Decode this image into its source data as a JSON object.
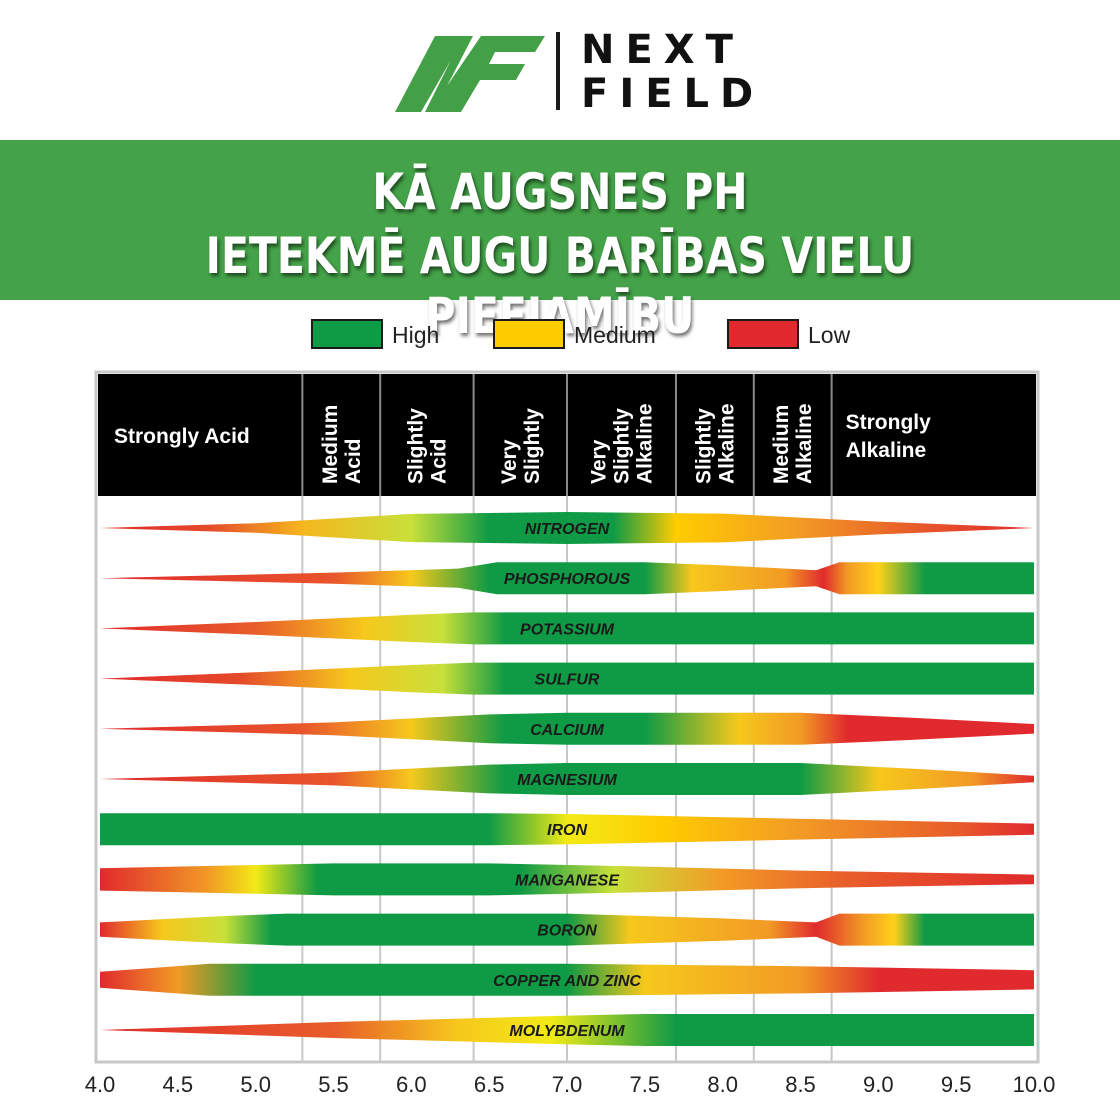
{
  "brand": {
    "line1": "NEXT",
    "line2": "FIELD",
    "colors": {
      "green": "#43a047",
      "dark": "#111111"
    }
  },
  "banner": {
    "line1": "KĀ AUGSNES PH",
    "line2": "IETEKMĒ AUGU BARĪBAS VIELU PIEEJAMĪBU",
    "color": "#44a348"
  },
  "chart_data": {
    "type": "band",
    "x_min": 4.0,
    "x_max": 10.0,
    "ticks": [
      "4.0",
      "4.5",
      "5.0",
      "5.5",
      "6.0",
      "6.5",
      "7.0",
      "7.5",
      "8.0",
      "8.5",
      "9.0",
      "9.5",
      "10.0"
    ],
    "legend": [
      {
        "label": "High",
        "color": "#0f9a45"
      },
      {
        "label": "Medium",
        "color": "#ffcc00"
      },
      {
        "label": "Low",
        "color": "#e02a2d"
      }
    ],
    "zones": [
      {
        "from": 4.0,
        "to": 5.3,
        "label": [
          "Strongly Acid"
        ],
        "vertical": false
      },
      {
        "from": 5.3,
        "to": 5.8,
        "label": [
          "Medium",
          "Acid"
        ],
        "vertical": true
      },
      {
        "from": 5.8,
        "to": 6.4,
        "label": [
          "Slightly",
          "Acid"
        ],
        "vertical": true
      },
      {
        "from": 6.4,
        "to": 7.0,
        "label": [
          "Very",
          "Slightly"
        ],
        "vertical": true
      },
      {
        "from": 7.0,
        "to": 7.7,
        "label": [
          "Very",
          "Slightly",
          "Alkaline"
        ],
        "vertical": true
      },
      {
        "from": 7.7,
        "to": 8.2,
        "label": [
          "Slightly",
          "Alkaline"
        ],
        "vertical": true
      },
      {
        "from": 8.2,
        "to": 8.7,
        "label": [
          "Medium",
          "Alkaline"
        ],
        "vertical": true
      },
      {
        "from": 8.7,
        "to": 10.0,
        "label": [
          "Strongly",
          "Alkaline"
        ],
        "vertical": false
      }
    ],
    "nutrients": [
      {
        "name": "NITROGEN",
        "width": [
          [
            4.0,
            0
          ],
          [
            5.0,
            0.3
          ],
          [
            6.0,
            0.88
          ],
          [
            7.0,
            1
          ],
          [
            8.0,
            0.9
          ],
          [
            9.0,
            0.4
          ],
          [
            10.0,
            0
          ]
        ],
        "color": [
          [
            4.0,
            "#e02a2d"
          ],
          [
            4.7,
            "#e44a2a"
          ],
          [
            5.3,
            "#f5b61e"
          ],
          [
            6.0,
            "#c9e03a"
          ],
          [
            6.5,
            "#0f9a45"
          ],
          [
            7.3,
            "#0f9a45"
          ],
          [
            7.7,
            "#ffcc00"
          ],
          [
            8.5,
            "#f29a25"
          ],
          [
            9.2,
            "#e85d2a"
          ],
          [
            10.0,
            "#e02a2d"
          ]
        ]
      },
      {
        "name": "PHOSPHOROUS",
        "width": [
          [
            4.0,
            0
          ],
          [
            5.5,
            0.35
          ],
          [
            6.3,
            0.6
          ],
          [
            6.55,
            1
          ],
          [
            7.5,
            1
          ],
          [
            8.0,
            0.8
          ],
          [
            8.6,
            0.5
          ],
          [
            8.75,
            1
          ],
          [
            10.0,
            1
          ]
        ],
        "color": [
          [
            4.0,
            "#e02a2d"
          ],
          [
            5.5,
            "#e8552b"
          ],
          [
            6.0,
            "#f6c81c"
          ],
          [
            6.5,
            "#0f9a45"
          ],
          [
            7.5,
            "#0f9a45"
          ],
          [
            7.8,
            "#f6c81c"
          ],
          [
            8.4,
            "#f29a25"
          ],
          [
            8.65,
            "#e02a2d"
          ],
          [
            8.8,
            "#f29a25"
          ],
          [
            9.0,
            "#ffd11a"
          ],
          [
            9.3,
            "#0f9a45"
          ],
          [
            10.0,
            "#0f9a45"
          ]
        ]
      },
      {
        "name": "POTASSIUM",
        "width": [
          [
            4.0,
            0
          ],
          [
            5.0,
            0.4
          ],
          [
            6.0,
            0.85
          ],
          [
            6.4,
            1
          ],
          [
            10.0,
            1
          ]
        ],
        "color": [
          [
            4.0,
            "#e02a2d"
          ],
          [
            5.0,
            "#e85d2a"
          ],
          [
            5.7,
            "#f6c81c"
          ],
          [
            6.2,
            "#c9e03a"
          ],
          [
            6.6,
            "#0f9a45"
          ],
          [
            10.0,
            "#0f9a45"
          ]
        ]
      },
      {
        "name": "SULFUR",
        "width": [
          [
            4.0,
            0
          ],
          [
            5.0,
            0.4
          ],
          [
            6.0,
            0.85
          ],
          [
            6.4,
            1
          ],
          [
            10.0,
            1
          ]
        ],
        "color": [
          [
            4.0,
            "#e02a2d"
          ],
          [
            4.9,
            "#e44a2a"
          ],
          [
            5.6,
            "#f6c81c"
          ],
          [
            6.2,
            "#c9e03a"
          ],
          [
            6.6,
            "#0f9a45"
          ],
          [
            10.0,
            "#0f9a45"
          ]
        ]
      },
      {
        "name": "CALCIUM",
        "width": [
          [
            4.0,
            0
          ],
          [
            5.5,
            0.4
          ],
          [
            6.5,
            0.9
          ],
          [
            7.0,
            1
          ],
          [
            8.5,
            1
          ],
          [
            9.2,
            0.7
          ],
          [
            10.0,
            0.3
          ]
        ],
        "color": [
          [
            4.0,
            "#e02a2d"
          ],
          [
            5.3,
            "#e8552b"
          ],
          [
            6.0,
            "#f6c81c"
          ],
          [
            6.6,
            "#0f9a45"
          ],
          [
            7.5,
            "#0f9a45"
          ],
          [
            8.1,
            "#f6c81c"
          ],
          [
            8.5,
            "#f29a25"
          ],
          [
            8.8,
            "#e02a2d"
          ],
          [
            10.0,
            "#e02a2d"
          ]
        ]
      },
      {
        "name": "MAGNESIUM",
        "width": [
          [
            4.0,
            0
          ],
          [
            5.5,
            0.4
          ],
          [
            6.5,
            0.9
          ],
          [
            7.0,
            1
          ],
          [
            8.5,
            1
          ],
          [
            9.3,
            0.6
          ],
          [
            10.0,
            0.2
          ]
        ],
        "color": [
          [
            4.0,
            "#e02a2d"
          ],
          [
            5.5,
            "#e8552b"
          ],
          [
            6.0,
            "#f6c81c"
          ],
          [
            6.6,
            "#0f9a45"
          ],
          [
            8.0,
            "#0f9a45"
          ],
          [
            8.5,
            "#0f9a45"
          ],
          [
            9.0,
            "#f6c81c"
          ],
          [
            9.6,
            "#f29a25"
          ],
          [
            10.0,
            "#e02a2d"
          ]
        ]
      },
      {
        "name": "IRON",
        "width": [
          [
            4.0,
            1
          ],
          [
            6.5,
            1
          ],
          [
            7.0,
            0.95
          ],
          [
            8.0,
            0.75
          ],
          [
            9.0,
            0.55
          ],
          [
            10.0,
            0.35
          ]
        ],
        "color": [
          [
            4.0,
            "#0f9a45"
          ],
          [
            6.5,
            "#0f9a45"
          ],
          [
            7.0,
            "#f2ea17"
          ],
          [
            7.6,
            "#ffcc00"
          ],
          [
            8.5,
            "#f29a25"
          ],
          [
            9.5,
            "#e85d2a"
          ],
          [
            10.0,
            "#e02a2d"
          ]
        ]
      },
      {
        "name": "MANGANESE",
        "width": [
          [
            4.0,
            0.7
          ],
          [
            5.0,
            0.9
          ],
          [
            5.5,
            1
          ],
          [
            6.5,
            1
          ],
          [
            7.5,
            0.8
          ],
          [
            8.5,
            0.55
          ],
          [
            10.0,
            0.3
          ]
        ],
        "color": [
          [
            4.0,
            "#e02a2d"
          ],
          [
            4.7,
            "#f29a25"
          ],
          [
            5.0,
            "#f2ea17"
          ],
          [
            5.4,
            "#0f9a45"
          ],
          [
            6.7,
            "#0f9a45"
          ],
          [
            7.3,
            "#c9e03a"
          ],
          [
            8.0,
            "#f29a25"
          ],
          [
            8.8,
            "#e85d2a"
          ],
          [
            10.0,
            "#e02a2d"
          ]
        ]
      },
      {
        "name": "BORON",
        "width": [
          [
            4.0,
            0.45
          ],
          [
            4.8,
            0.85
          ],
          [
            5.2,
            1
          ],
          [
            7.0,
            1
          ],
          [
            8.0,
            0.7
          ],
          [
            8.6,
            0.45
          ],
          [
            8.75,
            1
          ],
          [
            10.0,
            1
          ]
        ],
        "color": [
          [
            4.0,
            "#e02a2d"
          ],
          [
            4.4,
            "#f6c81c"
          ],
          [
            4.8,
            "#c9e03a"
          ],
          [
            5.1,
            "#0f9a45"
          ],
          [
            7.0,
            "#0f9a45"
          ],
          [
            7.4,
            "#f6c81c"
          ],
          [
            8.3,
            "#f29a25"
          ],
          [
            8.6,
            "#e02a2d"
          ],
          [
            8.9,
            "#f29a25"
          ],
          [
            9.1,
            "#ffd11a"
          ],
          [
            9.3,
            "#0f9a45"
          ],
          [
            10.0,
            "#0f9a45"
          ]
        ]
      },
      {
        "name": "COPPER AND ZINC",
        "width": [
          [
            4.0,
            0.5
          ],
          [
            4.7,
            1
          ],
          [
            7.0,
            1
          ],
          [
            8.5,
            0.85
          ],
          [
            10.0,
            0.6
          ]
        ],
        "color": [
          [
            4.0,
            "#e02a2d"
          ],
          [
            4.5,
            "#f29a25"
          ],
          [
            5.0,
            "#0f9a45"
          ],
          [
            7.0,
            "#0f9a45"
          ],
          [
            7.5,
            "#f6c81c"
          ],
          [
            8.5,
            "#f29a25"
          ],
          [
            9.0,
            "#e02a2d"
          ],
          [
            10.0,
            "#e02a2d"
          ]
        ]
      },
      {
        "name": "MOLYBDENUM",
        "width": [
          [
            4.0,
            0
          ],
          [
            5.5,
            0.5
          ],
          [
            7.0,
            0.9
          ],
          [
            7.5,
            1
          ],
          [
            10.0,
            1
          ]
        ],
        "color": [
          [
            4.0,
            "#e02a2d"
          ],
          [
            5.5,
            "#e85d2a"
          ],
          [
            6.3,
            "#f6c81c"
          ],
          [
            6.9,
            "#f2ea17"
          ],
          [
            7.7,
            "#0f9a45"
          ],
          [
            10.0,
            "#0f9a45"
          ]
        ]
      }
    ]
  }
}
